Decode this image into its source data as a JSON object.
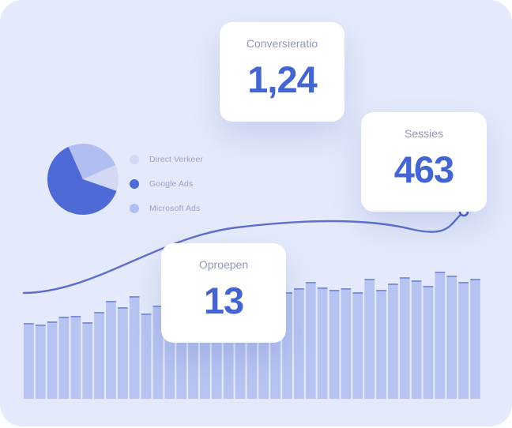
{
  "colors": {
    "panel_bg": "#e4eafb",
    "bar_fill": "#b7c4f1",
    "bar_cap": "#7f93dd",
    "accent": "#4464d0",
    "trend_line": "#4e62c7"
  },
  "metrics": {
    "conversion": {
      "label": "Conversieratio",
      "value": "1,24"
    },
    "sessions": {
      "label": "Sessies",
      "value": "463"
    },
    "calls": {
      "label": "Oproepen",
      "value": "13"
    }
  },
  "legend": [
    {
      "label": "Direct Verkeer",
      "color": "#d3d9f5"
    },
    {
      "label": "Google Ads",
      "color": "#4e6ad6"
    },
    {
      "label": "Microsoft Ads",
      "color": "#b0bef1"
    }
  ],
  "pie_data": {
    "type": "pie",
    "slices": [
      {
        "name": "Direct Verkeer",
        "value": 12,
        "color": "#d3d9f5"
      },
      {
        "name": "Google Ads",
        "value": 63,
        "color": "#4e6ad6"
      },
      {
        "name": "Microsoft Ads",
        "value": 25,
        "color": "#b0bef1"
      }
    ]
  },
  "bar_data": {
    "type": "bar",
    "values": [
      96,
      94,
      98,
      104,
      105,
      97,
      110,
      124,
      116,
      130,
      108,
      118,
      122,
      128,
      134,
      138,
      130,
      126,
      140,
      144,
      142,
      138,
      135,
      140,
      148,
      141,
      138,
      140,
      135,
      152,
      138,
      146,
      154,
      150,
      143,
      161,
      156,
      148,
      152
    ],
    "ylim": [
      0,
      170
    ]
  }
}
